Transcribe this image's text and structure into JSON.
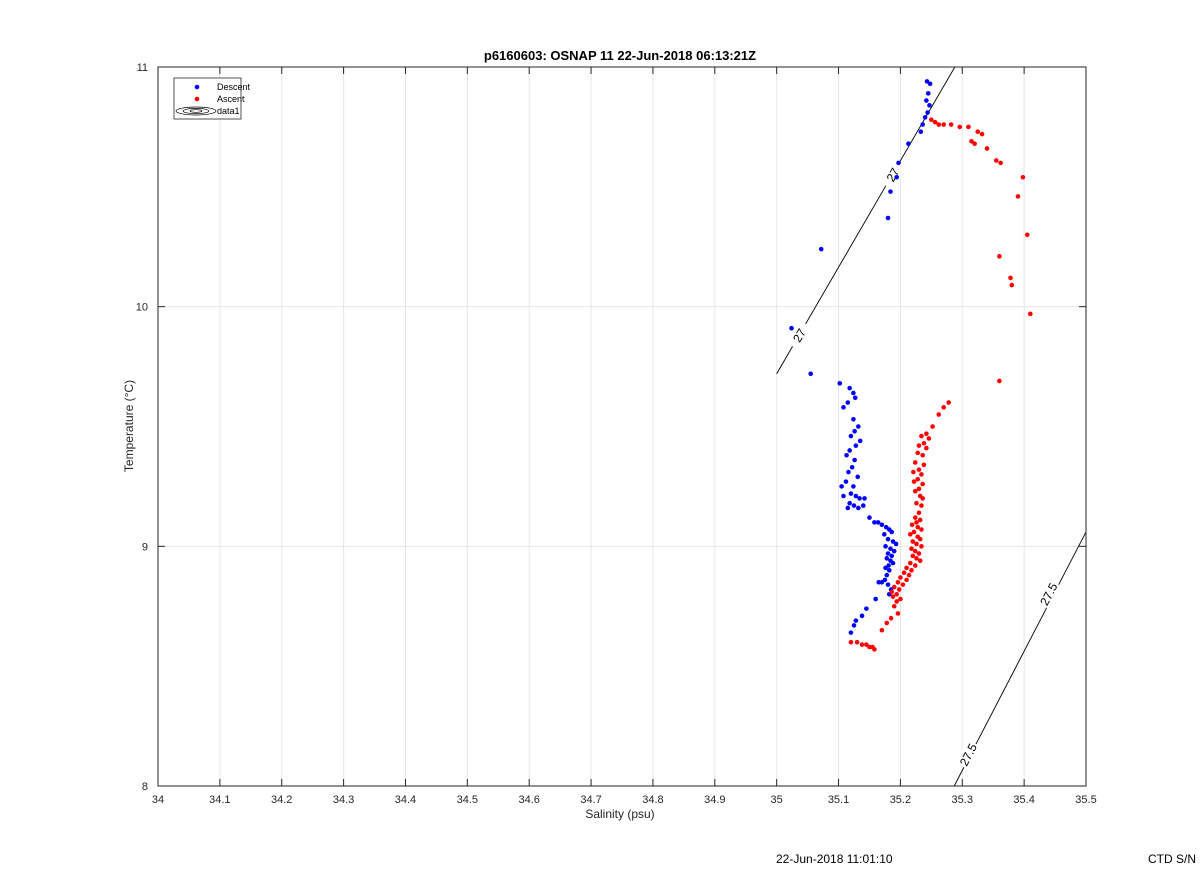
{
  "footer": {
    "timestamp": "22-Jun-2018 11:01:10",
    "serial": "CTD S/N"
  },
  "chart_data": {
    "type": "scatter",
    "title": "p6160603: OSNAP 11 22-Jun-2018 06:13:21Z",
    "xlabel": "Salinity (psu)",
    "ylabel": "Temperature (°C)",
    "xlim": [
      34,
      35.5
    ],
    "ylim": [
      8,
      11
    ],
    "xticks": [
      34,
      34.1,
      34.2,
      34.3,
      34.4,
      34.5,
      34.6,
      34.7,
      34.8,
      34.9,
      35,
      35.1,
      35.2,
      35.3,
      35.4,
      35.5
    ],
    "xtick_labels": [
      "34",
      "34.1",
      "34.2",
      "34.3",
      "34.4",
      "34.5",
      "34.6",
      "34.7",
      "34.8",
      "34.9",
      "35",
      "35.1",
      "35.2",
      "35.3",
      "35.4",
      "35.5"
    ],
    "yticks": [
      8,
      9,
      10,
      11
    ],
    "ytick_labels": [
      "8",
      "9",
      "10",
      "11"
    ],
    "grid": true,
    "legend_position": "top-left",
    "legend": [
      {
        "label": "Descent",
        "kind": "marker",
        "color": "#0000ff"
      },
      {
        "label": "Ascent",
        "kind": "marker",
        "color": "#ff0000"
      },
      {
        "label": "data1",
        "kind": "contour",
        "color": "#000000"
      }
    ],
    "series": [
      {
        "name": "Descent",
        "color": "#0000ff",
        "points": [
          [
            35.243,
            10.94
          ],
          [
            35.248,
            10.93
          ],
          [
            35.245,
            10.89
          ],
          [
            35.242,
            10.86
          ],
          [
            35.247,
            10.84
          ],
          [
            35.244,
            10.81
          ],
          [
            35.24,
            10.79
          ],
          [
            35.236,
            10.76
          ],
          [
            35.233,
            10.73
          ],
          [
            35.213,
            10.68
          ],
          [
            35.197,
            10.6
          ],
          [
            35.194,
            10.54
          ],
          [
            35.184,
            10.48
          ],
          [
            35.18,
            10.37
          ],
          [
            35.072,
            10.24
          ],
          [
            35.024,
            9.91
          ],
          [
            35.055,
            9.72
          ],
          [
            35.102,
            9.68
          ],
          [
            35.118,
            9.66
          ],
          [
            35.124,
            9.64
          ],
          [
            35.127,
            9.62
          ],
          [
            35.115,
            9.6
          ],
          [
            35.108,
            9.58
          ],
          [
            35.124,
            9.53
          ],
          [
            35.132,
            9.5
          ],
          [
            35.126,
            9.48
          ],
          [
            35.12,
            9.46
          ],
          [
            35.135,
            9.44
          ],
          [
            35.128,
            9.42
          ],
          [
            35.118,
            9.4
          ],
          [
            35.113,
            9.38
          ],
          [
            35.126,
            9.36
          ],
          [
            35.122,
            9.33
          ],
          [
            35.116,
            9.31
          ],
          [
            35.131,
            9.29
          ],
          [
            35.112,
            9.27
          ],
          [
            35.124,
            9.25
          ],
          [
            35.105,
            9.25
          ],
          [
            35.12,
            9.22
          ],
          [
            35.128,
            9.21
          ],
          [
            35.134,
            9.2
          ],
          [
            35.142,
            9.2
          ],
          [
            35.108,
            9.21
          ],
          [
            35.118,
            9.18
          ],
          [
            35.125,
            9.17
          ],
          [
            35.115,
            9.16
          ],
          [
            35.132,
            9.16
          ],
          [
            35.14,
            9.17
          ],
          [
            35.15,
            9.12
          ],
          [
            35.158,
            9.1
          ],
          [
            35.164,
            9.1
          ],
          [
            35.17,
            9.09
          ],
          [
            35.177,
            9.08
          ],
          [
            35.182,
            9.07
          ],
          [
            35.186,
            9.06
          ],
          [
            35.174,
            9.05
          ],
          [
            35.18,
            9.03
          ],
          [
            35.188,
            9.02
          ],
          [
            35.193,
            9.01
          ],
          [
            35.176,
            9.0
          ],
          [
            35.184,
            8.99
          ],
          [
            35.19,
            8.98
          ],
          [
            35.18,
            8.97
          ],
          [
            35.186,
            8.96
          ],
          [
            35.178,
            8.95
          ],
          [
            35.184,
            8.94
          ],
          [
            35.188,
            8.93
          ],
          [
            35.181,
            8.92
          ],
          [
            35.176,
            8.91
          ],
          [
            35.182,
            8.9
          ],
          [
            35.178,
            8.88
          ],
          [
            35.175,
            8.86
          ],
          [
            35.17,
            8.85
          ],
          [
            35.165,
            8.85
          ],
          [
            35.18,
            8.84
          ],
          [
            35.185,
            8.82
          ],
          [
            35.182,
            8.8
          ],
          [
            35.16,
            8.78
          ],
          [
            35.145,
            8.74
          ],
          [
            35.138,
            8.71
          ],
          [
            35.128,
            8.69
          ],
          [
            35.125,
            8.67
          ],
          [
            35.12,
            8.64
          ]
        ]
      },
      {
        "name": "Ascent",
        "color": "#ff0000",
        "points": [
          [
            35.25,
            10.78
          ],
          [
            35.256,
            10.77
          ],
          [
            35.262,
            10.76
          ],
          [
            35.27,
            10.76
          ],
          [
            35.282,
            10.76
          ],
          [
            35.296,
            10.75
          ],
          [
            35.31,
            10.75
          ],
          [
            35.325,
            10.73
          ],
          [
            35.332,
            10.72
          ],
          [
            35.315,
            10.69
          ],
          [
            35.32,
            10.68
          ],
          [
            35.34,
            10.66
          ],
          [
            35.355,
            10.61
          ],
          [
            35.362,
            10.6
          ],
          [
            35.398,
            10.54
          ],
          [
            35.39,
            10.46
          ],
          [
            35.405,
            10.3
          ],
          [
            35.36,
            10.21
          ],
          [
            35.378,
            10.12
          ],
          [
            35.38,
            10.09
          ],
          [
            35.41,
            9.97
          ],
          [
            35.36,
            9.69
          ],
          [
            35.278,
            9.6
          ],
          [
            35.27,
            9.58
          ],
          [
            35.262,
            9.55
          ],
          [
            35.252,
            9.5
          ],
          [
            35.242,
            9.47
          ],
          [
            35.234,
            9.46
          ],
          [
            35.246,
            9.45
          ],
          [
            35.238,
            9.43
          ],
          [
            35.23,
            9.42
          ],
          [
            35.242,
            9.41
          ],
          [
            35.228,
            9.39
          ],
          [
            35.236,
            9.38
          ],
          [
            35.224,
            9.35
          ],
          [
            35.238,
            9.34
          ],
          [
            35.23,
            9.32
          ],
          [
            35.221,
            9.31
          ],
          [
            35.234,
            9.3
          ],
          [
            35.228,
            9.28
          ],
          [
            35.222,
            9.27
          ],
          [
            35.236,
            9.26
          ],
          [
            35.23,
            9.24
          ],
          [
            35.224,
            9.23
          ],
          [
            35.232,
            9.21
          ],
          [
            35.236,
            9.2
          ],
          [
            35.226,
            9.18
          ],
          [
            35.234,
            9.17
          ],
          [
            35.23,
            9.14
          ],
          [
            35.224,
            9.12
          ],
          [
            35.232,
            9.11
          ],
          [
            35.226,
            9.1
          ],
          [
            35.219,
            9.09
          ],
          [
            35.228,
            9.08
          ],
          [
            35.234,
            9.07
          ],
          [
            35.222,
            9.06
          ],
          [
            35.216,
            9.05
          ],
          [
            35.228,
            9.04
          ],
          [
            35.232,
            9.03
          ],
          [
            35.22,
            9.02
          ],
          [
            35.226,
            9.01
          ],
          [
            35.234,
            9.0
          ],
          [
            35.218,
            8.99
          ],
          [
            35.224,
            8.98
          ],
          [
            35.23,
            8.97
          ],
          [
            35.22,
            8.96
          ],
          [
            35.226,
            8.95
          ],
          [
            35.232,
            8.94
          ],
          [
            35.216,
            8.93
          ],
          [
            35.224,
            8.92
          ],
          [
            35.21,
            8.91
          ],
          [
            35.218,
            8.9
          ],
          [
            35.206,
            8.89
          ],
          [
            35.214,
            8.88
          ],
          [
            35.2,
            8.87
          ],
          [
            35.21,
            8.86
          ],
          [
            35.196,
            8.85
          ],
          [
            35.204,
            8.84
          ],
          [
            35.19,
            8.83
          ],
          [
            35.198,
            8.82
          ],
          [
            35.186,
            8.81
          ],
          [
            35.194,
            8.8
          ],
          [
            35.188,
            8.79
          ],
          [
            35.2,
            8.78
          ],
          [
            35.194,
            8.77
          ],
          [
            35.19,
            8.75
          ],
          [
            35.196,
            8.72
          ],
          [
            35.185,
            8.7
          ],
          [
            35.178,
            8.68
          ],
          [
            35.17,
            8.65
          ],
          [
            35.12,
            8.6
          ],
          [
            35.13,
            8.6
          ],
          [
            35.138,
            8.59
          ],
          [
            35.145,
            8.59
          ],
          [
            35.15,
            8.58
          ],
          [
            35.155,
            8.58
          ],
          [
            35.158,
            8.57
          ]
        ]
      }
    ],
    "contours": [
      {
        "level_label": "27",
        "points": [
          [
            35.0,
            9.72
          ],
          [
            35.288,
            11.0
          ]
        ],
        "label_positions": [
          [
            35.037,
            9.88
          ],
          [
            35.188,
            10.55
          ]
        ]
      },
      {
        "level_label": "27.5",
        "points": [
          [
            35.287,
            8.0
          ],
          [
            35.5,
            9.06
          ]
        ],
        "label_positions": [
          [
            35.31,
            8.13
          ],
          [
            35.44,
            8.8
          ]
        ]
      }
    ]
  }
}
